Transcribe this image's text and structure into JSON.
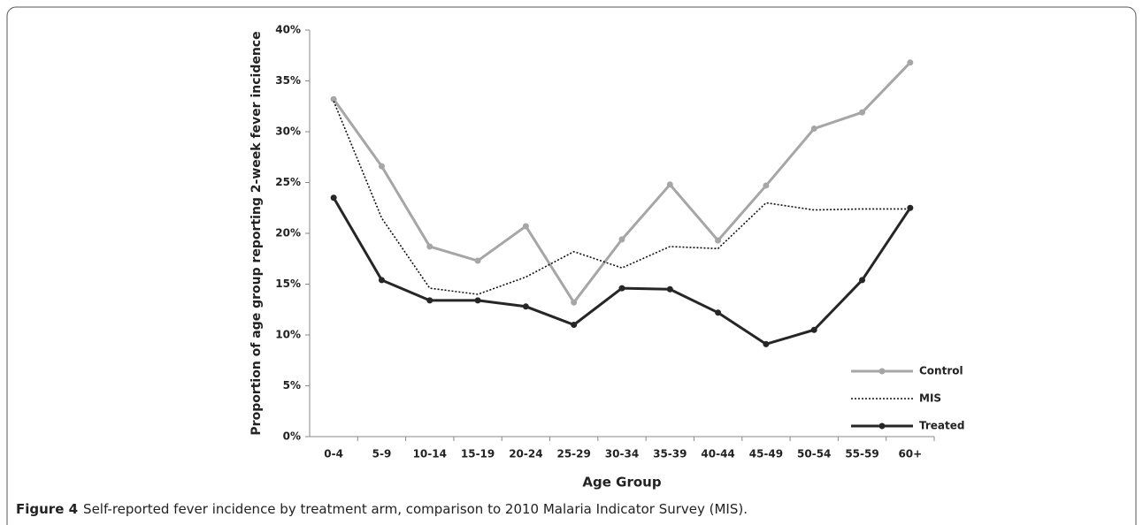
{
  "chart_data": {
    "type": "line",
    "categories": [
      "0-4",
      "5-9",
      "10-14",
      "15-19",
      "20-24",
      "25-29",
      "30-34",
      "35-39",
      "40-44",
      "45-49",
      "50-54",
      "55-59",
      "60+"
    ],
    "series": [
      {
        "name": "Control",
        "color": "#a6a6a6",
        "markers": true,
        "dash": "solid",
        "values": [
          33.2,
          26.6,
          18.7,
          17.3,
          20.7,
          13.2,
          19.4,
          24.8,
          19.3,
          24.7,
          30.3,
          31.9,
          36.8
        ]
      },
      {
        "name": "MIS",
        "color": "#111111",
        "markers": false,
        "dash": "dotted",
        "values": [
          33.0,
          21.5,
          14.6,
          14.0,
          15.7,
          18.2,
          16.6,
          18.7,
          18.5,
          23.0,
          22.3,
          22.4,
          22.4
        ]
      },
      {
        "name": "Treated",
        "color": "#262626",
        "markers": true,
        "dash": "solid",
        "values": [
          23.5,
          15.4,
          13.4,
          13.4,
          12.8,
          11.0,
          14.6,
          14.5,
          12.2,
          9.1,
          10.5,
          15.4,
          22.5
        ]
      }
    ],
    "ylim": [
      0,
      40
    ],
    "yticks": [
      {
        "value": 0,
        "label": "0%"
      },
      {
        "value": 5,
        "label": "5%"
      },
      {
        "value": 10,
        "label": "10%"
      },
      {
        "value": 15,
        "label": "15%"
      },
      {
        "value": 20,
        "label": "20%"
      },
      {
        "value": 25,
        "label": "25%"
      },
      {
        "value": 30,
        "label": "30%"
      },
      {
        "value": 35,
        "label": "35%"
      },
      {
        "value": 40,
        "label": "40%"
      }
    ],
    "ylabel": "Proportion of age group reporting 2-week fever incidence",
    "xlabel": "Age Group",
    "legend": "lower right",
    "grid": false,
    "caption_label": "Figure 4",
    "caption_text": "Self-reported fever incidence by treatment arm, comparison to 2010 Malaria Indicator Survey (MIS)."
  }
}
